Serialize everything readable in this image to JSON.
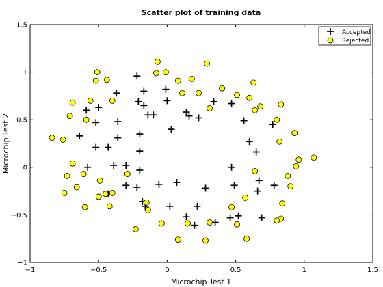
{
  "chart_data": {
    "type": "scatter",
    "title": "Scatter plot of training data",
    "xlabel": "Microchip Test 1",
    "ylabel": "Microchip Test 2",
    "xlim": [
      -1,
      1.5
    ],
    "ylim": [
      -1,
      1.5
    ],
    "xticks": [
      -1,
      -0.5,
      0,
      0.5,
      1,
      1.5
    ],
    "yticks": [
      -1,
      -0.5,
      0,
      0.5,
      1,
      1.5
    ],
    "xtick_labels": [
      "−1",
      "−0.5",
      "0",
      "0.5",
      "1",
      "1.5"
    ],
    "ytick_labels": [
      "−1",
      "−0.5",
      "0",
      "0.5",
      "1",
      "1.5"
    ],
    "grid": false,
    "legend_position": "top-right",
    "series": [
      {
        "name": "Accepted",
        "marker": "plus",
        "color": "#000000",
        "points": [
          [
            -0.22,
            0.96
          ],
          [
            -0.37,
            0.78
          ],
          [
            -0.17,
            0.8
          ],
          [
            -0.01,
            0.82
          ],
          [
            0.34,
            0.69
          ],
          [
            0.47,
            0.67
          ],
          [
            -0.59,
            0.6
          ],
          [
            -0.5,
            0.63
          ],
          [
            -0.21,
            0.69
          ],
          [
            -0.17,
            0.65
          ],
          [
            0.0,
            0.7
          ],
          [
            0.14,
            0.58
          ],
          [
            0.16,
            0.54
          ],
          [
            0.23,
            0.52
          ],
          [
            -0.14,
            0.55
          ],
          [
            -0.1,
            0.55
          ],
          [
            -0.52,
            0.47
          ],
          [
            -0.36,
            0.48
          ],
          [
            0.56,
            0.49
          ],
          [
            0.77,
            0.45
          ],
          [
            -0.64,
            0.33
          ],
          [
            -0.2,
            0.35
          ],
          [
            0.03,
            0.4
          ],
          [
            -0.52,
            0.21
          ],
          [
            -0.43,
            0.21
          ],
          [
            -0.36,
            0.31
          ],
          [
            0.6,
            0.27
          ],
          [
            0.65,
            0.16
          ],
          [
            -0.2,
            0.17
          ],
          [
            -0.39,
            0.02
          ],
          [
            -0.3,
            0.02
          ],
          [
            -0.58,
            0.0
          ],
          [
            -0.2,
            -0.03
          ],
          [
            0.47,
            0.0
          ],
          [
            -0.3,
            -0.19
          ],
          [
            -0.22,
            -0.21
          ],
          [
            -0.06,
            -0.18
          ],
          [
            0.07,
            -0.16
          ],
          [
            0.28,
            -0.22
          ],
          [
            0.49,
            -0.19
          ],
          [
            0.67,
            -0.14
          ],
          [
            0.66,
            -0.25
          ],
          [
            0.78,
            -0.19
          ],
          [
            -0.43,
            -0.28
          ],
          [
            -0.16,
            -0.41
          ],
          [
            0.02,
            -0.41
          ],
          [
            0.22,
            -0.41
          ],
          [
            0.14,
            -0.52
          ],
          [
            0.2,
            -0.61
          ],
          [
            0.35,
            -0.58
          ],
          [
            0.46,
            -0.53
          ],
          [
            0.52,
            -0.51
          ],
          [
            0.69,
            -0.53
          ],
          [
            -0.18,
            -0.36
          ]
        ]
      },
      {
        "name": "Rejected",
        "marker": "circle",
        "color": "#ffff00",
        "points": [
          [
            -0.07,
            1.11
          ],
          [
            -0.51,
            1.0
          ],
          [
            -0.08,
            0.99
          ],
          [
            -0.01,
            1.0
          ],
          [
            0.29,
            1.09
          ],
          [
            -0.52,
            0.91
          ],
          [
            -0.44,
            0.92
          ],
          [
            0.08,
            0.91
          ],
          [
            0.18,
            0.93
          ],
          [
            0.63,
            0.89
          ],
          [
            -0.69,
            0.68
          ],
          [
            -0.56,
            0.7
          ],
          [
            -0.4,
            0.7
          ],
          [
            0.11,
            0.78
          ],
          [
            0.23,
            0.78
          ],
          [
            0.4,
            0.83
          ],
          [
            0.51,
            0.76
          ],
          [
            0.6,
            0.73
          ],
          [
            0.68,
            0.64
          ],
          [
            0.83,
            0.66
          ],
          [
            -0.71,
            0.54
          ],
          [
            -0.59,
            0.5
          ],
          [
            0.31,
            0.62
          ],
          [
            0.64,
            0.6
          ],
          [
            0.8,
            0.5
          ],
          [
            -0.84,
            0.31
          ],
          [
            -0.76,
            0.29
          ],
          [
            0.82,
            0.27
          ],
          [
            0.93,
            0.36
          ],
          [
            -0.69,
            0.04
          ],
          [
            0.64,
            -0.04
          ],
          [
            0.96,
            0.08
          ],
          [
            1.07,
            0.1
          ],
          [
            0.94,
            0.01
          ],
          [
            -0.73,
            -0.09
          ],
          [
            -0.61,
            -0.07
          ],
          [
            -0.49,
            -0.14
          ],
          [
            -0.29,
            -0.07
          ],
          [
            0.88,
            -0.09
          ],
          [
            -0.66,
            -0.21
          ],
          [
            0.9,
            -0.2
          ],
          [
            -0.75,
            -0.27
          ],
          [
            -0.5,
            -0.31
          ],
          [
            -0.45,
            -0.28
          ],
          [
            -0.4,
            -0.27
          ],
          [
            0.57,
            -0.32
          ],
          [
            0.84,
            -0.38
          ],
          [
            -0.6,
            -0.42
          ],
          [
            -0.42,
            -0.41
          ],
          [
            -0.15,
            -0.37
          ],
          [
            -0.14,
            -0.45
          ],
          [
            0.47,
            -0.42
          ],
          [
            0.83,
            -0.54
          ],
          [
            0.8,
            -0.56
          ],
          [
            -0.04,
            -0.59
          ],
          [
            0.15,
            -0.59
          ],
          [
            0.31,
            -0.58
          ],
          [
            0.51,
            -0.6
          ],
          [
            -0.23,
            -0.65
          ],
          [
            0.08,
            -0.76
          ],
          [
            0.28,
            -0.77
          ],
          [
            0.58,
            -0.75
          ]
        ]
      }
    ]
  }
}
